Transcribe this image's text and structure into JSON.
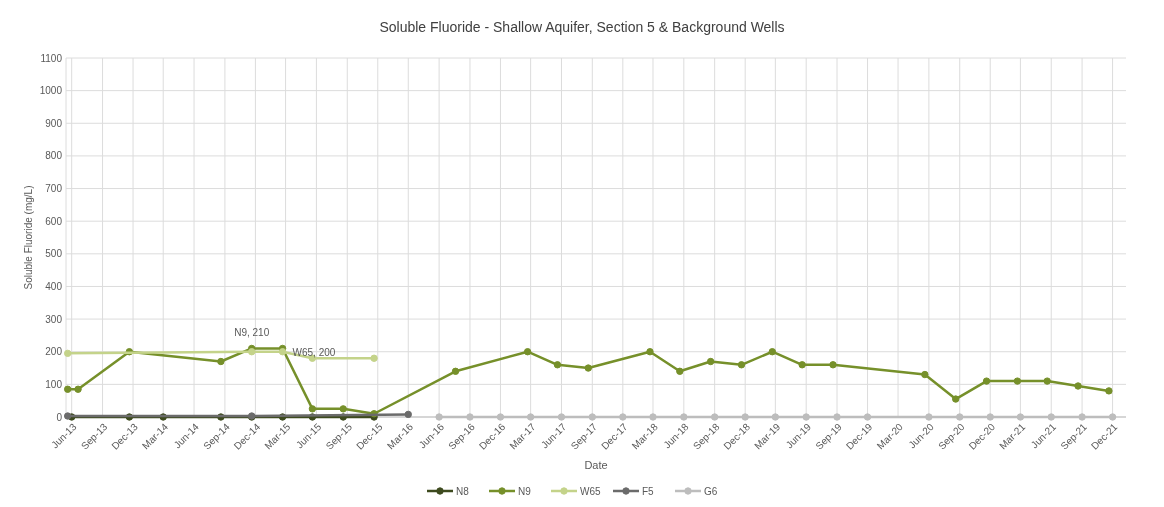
{
  "chart_data": {
    "type": "line",
    "title": "Soluble Fluoride - Shallow Aquifer, Section 5 & Background Wells",
    "xlabel": "Date",
    "ylabel": "Soluble Fluoride (mg/L)",
    "xlim": [
      "2013-05-15",
      "2022-01-10"
    ],
    "ylim": [
      0,
      1100
    ],
    "yticks": [
      0,
      100,
      200,
      300,
      400,
      500,
      600,
      700,
      800,
      900,
      1000,
      1100
    ],
    "xticks": [
      {
        "value": "2013-06-01",
        "label": "Jun-13"
      },
      {
        "value": "2013-09-01",
        "label": "Sep-13"
      },
      {
        "value": "2013-12-01",
        "label": "Dec-13"
      },
      {
        "value": "2014-03-01",
        "label": "Mar-14"
      },
      {
        "value": "2014-06-01",
        "label": "Jun-14"
      },
      {
        "value": "2014-09-01",
        "label": "Sep-14"
      },
      {
        "value": "2014-12-01",
        "label": "Dec-14"
      },
      {
        "value": "2015-03-01",
        "label": "Mar-15"
      },
      {
        "value": "2015-06-01",
        "label": "Jun-15"
      },
      {
        "value": "2015-09-01",
        "label": "Sep-15"
      },
      {
        "value": "2015-12-01",
        "label": "Dec-15"
      },
      {
        "value": "2016-03-01",
        "label": "Mar-16"
      },
      {
        "value": "2016-06-01",
        "label": "Jun-16"
      },
      {
        "value": "2016-09-01",
        "label": "Sep-16"
      },
      {
        "value": "2016-12-01",
        "label": "Dec-16"
      },
      {
        "value": "2017-03-01",
        "label": "Mar-17"
      },
      {
        "value": "2017-06-01",
        "label": "Jun-17"
      },
      {
        "value": "2017-09-01",
        "label": "Sep-17"
      },
      {
        "value": "2017-12-01",
        "label": "Dec-17"
      },
      {
        "value": "2018-03-01",
        "label": "Mar-18"
      },
      {
        "value": "2018-06-01",
        "label": "Jun-18"
      },
      {
        "value": "2018-09-01",
        "label": "Sep-18"
      },
      {
        "value": "2018-12-01",
        "label": "Dec-18"
      },
      {
        "value": "2019-03-01",
        "label": "Mar-19"
      },
      {
        "value": "2019-06-01",
        "label": "Jun-19"
      },
      {
        "value": "2019-09-01",
        "label": "Sep-19"
      },
      {
        "value": "2019-12-01",
        "label": "Dec-19"
      },
      {
        "value": "2020-03-01",
        "label": "Mar-20"
      },
      {
        "value": "2020-06-01",
        "label": "Jun-20"
      },
      {
        "value": "2020-09-01",
        "label": "Sep-20"
      },
      {
        "value": "2020-12-01",
        "label": "Dec-20"
      },
      {
        "value": "2021-03-01",
        "label": "Mar-21"
      },
      {
        "value": "2021-06-01",
        "label": "Jun-21"
      },
      {
        "value": "2021-09-01",
        "label": "Sep-21"
      },
      {
        "value": "2021-12-01",
        "label": "Dec-21"
      }
    ],
    "grid": true,
    "legend": "bottom",
    "marker": "circle",
    "line_style": "solid",
    "annotations": [
      {
        "text": "N9, 210",
        "x": "2014-11-20",
        "y": 210
      },
      {
        "text": "W65, 200",
        "x": "2015-02-20",
        "y": 200
      }
    ],
    "series": [
      {
        "name": "N8",
        "color": "#3d4a1e",
        "x": [
          "2013-06-01",
          "2013-11-20",
          "2014-03-01",
          "2014-08-20",
          "2014-11-20",
          "2015-02-20",
          "2015-05-20",
          "2015-08-20",
          "2015-11-20"
        ],
        "values": [
          0,
          0,
          0,
          0,
          0,
          0,
          0,
          0,
          0
        ]
      },
      {
        "name": "N9",
        "color": "#76902a",
        "x": [
          "2013-05-20",
          "2013-06-20",
          "2013-11-20",
          "2014-08-20",
          "2014-11-20",
          "2015-02-20",
          "2015-05-20",
          "2015-08-20",
          "2015-11-20",
          "2016-07-20",
          "2017-02-20",
          "2017-05-20",
          "2017-08-20",
          "2018-02-20",
          "2018-05-20",
          "2018-08-20",
          "2018-11-20",
          "2019-02-20",
          "2019-05-20",
          "2019-08-20",
          "2020-05-20",
          "2020-08-20",
          "2020-11-20",
          "2021-02-20",
          "2021-05-20",
          "2021-08-20",
          "2021-11-20"
        ],
        "values": [
          85,
          85,
          200,
          170,
          210,
          210,
          25,
          25,
          10,
          140,
          200,
          160,
          150,
          200,
          140,
          170,
          160,
          200,
          160,
          160,
          130,
          55,
          110,
          110,
          110,
          95,
          80
        ]
      },
      {
        "name": "W65",
        "color": "#c4d38a",
        "x": [
          "2013-05-20",
          "2014-11-20",
          "2015-02-20",
          "2015-05-20",
          "2015-11-20"
        ],
        "values": [
          195,
          200,
          200,
          180,
          180
        ]
      },
      {
        "name": "F5",
        "color": "#6b6b6b",
        "x": [
          "2013-05-20",
          "2014-11-20",
          "2016-03-01"
        ],
        "values": [
          3,
          3,
          8
        ]
      },
      {
        "name": "G6",
        "color": "#bdbdbd",
        "x": [
          "2016-06-01",
          "2016-09-01",
          "2016-12-01",
          "2017-03-01",
          "2017-06-01",
          "2017-09-01",
          "2017-12-01",
          "2018-03-01",
          "2018-06-01",
          "2018-09-01",
          "2018-12-01",
          "2019-03-01",
          "2019-06-01",
          "2019-09-01",
          "2019-12-01",
          "2020-06-01",
          "2020-09-01",
          "2020-12-01",
          "2021-03-01",
          "2021-06-01",
          "2021-09-01",
          "2021-12-01"
        ],
        "values": [
          0,
          0,
          0,
          0,
          0,
          0,
          0,
          0,
          0,
          0,
          0,
          0,
          0,
          0,
          0,
          0,
          0,
          0,
          0,
          0,
          0,
          0
        ]
      }
    ]
  }
}
